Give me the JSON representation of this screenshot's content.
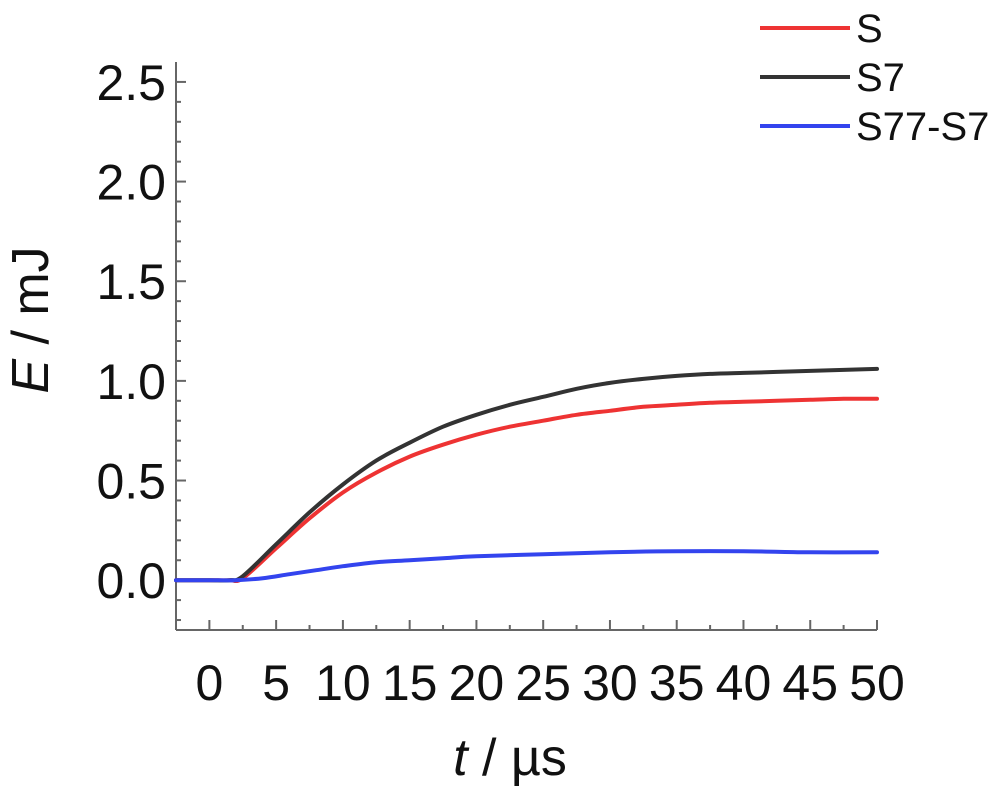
{
  "chart_data": {
    "type": "line",
    "xlabel_var": "t",
    "xlabel_unit": " / µs",
    "ylabel_var": "E",
    "ylabel_unit": " / mJ",
    "xlim": [
      -2.5,
      50
    ],
    "ylim": [
      -0.25,
      2.6
    ],
    "xticks": [
      0,
      5,
      10,
      15,
      20,
      25,
      30,
      35,
      40,
      45,
      50
    ],
    "xtick_labels": [
      "0",
      "5",
      "10",
      "15",
      "20",
      "25",
      "30",
      "35",
      "40",
      "45",
      "50"
    ],
    "yticks": [
      0.0,
      0.5,
      1.0,
      1.5,
      2.0,
      2.5
    ],
    "ytick_labels": [
      "0.0",
      "0.5",
      "1.0",
      "1.5",
      "2.0",
      "2.5"
    ],
    "grid": false,
    "legend_position": "top-right",
    "series": [
      {
        "name": "S",
        "color": "#ee3333",
        "x": [
          -2.5,
          0,
          1.5,
          2.5,
          5,
          7.5,
          10,
          12.5,
          15,
          17.5,
          20,
          22.5,
          25,
          27.5,
          30,
          32.5,
          35,
          37.5,
          40,
          42.5,
          45,
          47.5,
          50
        ],
        "y": [
          0.0,
          0.0,
          0.0,
          0.01,
          0.16,
          0.31,
          0.44,
          0.54,
          0.62,
          0.68,
          0.73,
          0.77,
          0.8,
          0.83,
          0.85,
          0.87,
          0.88,
          0.89,
          0.895,
          0.9,
          0.905,
          0.91,
          0.91
        ]
      },
      {
        "name": "S7",
        "color": "#333333",
        "x": [
          -2.5,
          0,
          1.5,
          2.5,
          5,
          7.5,
          10,
          12.5,
          15,
          17.5,
          20,
          22.5,
          25,
          27.5,
          30,
          32.5,
          35,
          37.5,
          40,
          42.5,
          45,
          47.5,
          50
        ],
        "y": [
          0.0,
          0.0,
          0.0,
          0.02,
          0.18,
          0.34,
          0.48,
          0.6,
          0.69,
          0.77,
          0.83,
          0.88,
          0.92,
          0.96,
          0.99,
          1.01,
          1.025,
          1.035,
          1.04,
          1.045,
          1.05,
          1.055,
          1.06
        ]
      },
      {
        "name": "S77-S7",
        "color": "#3344ee",
        "x": [
          -2.5,
          0,
          2,
          4,
          6,
          8,
          10,
          12.5,
          15,
          17.5,
          20,
          25,
          30,
          35,
          40,
          45,
          50
        ],
        "y": [
          0.0,
          0.0,
          0.0,
          0.01,
          0.03,
          0.05,
          0.07,
          0.09,
          0.1,
          0.11,
          0.12,
          0.13,
          0.14,
          0.145,
          0.145,
          0.14,
          0.14
        ]
      }
    ]
  }
}
